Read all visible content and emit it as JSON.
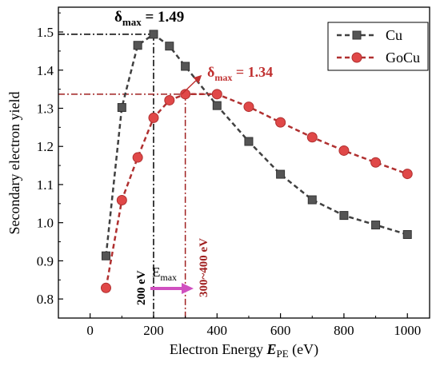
{
  "chart_data": {
    "type": "line",
    "xlabel_prefix": "Electron Energy ",
    "xlabel_var": "E",
    "xlabel_sub": "PE",
    "xlabel_unit": " (eV)",
    "ylabel": "Secondary electron yield",
    "xlim": [
      -100,
      1070
    ],
    "ylim": [
      0.75,
      1.565
    ],
    "x_ticks": [
      0,
      200,
      400,
      600,
      800,
      1000
    ],
    "y_ticks": [
      0.8,
      0.9,
      1.0,
      1.1,
      1.2,
      1.3,
      1.4,
      1.5
    ],
    "x_tick_labels": [
      "0",
      "200",
      "400",
      "600",
      "800",
      "1000"
    ],
    "y_tick_labels": [
      "0.8",
      "0.9",
      "1.0",
      "1.1",
      "1.2",
      "1.3",
      "1.4",
      "1.5"
    ],
    "legend_position": "top-right",
    "series": [
      {
        "name": "Cu",
        "color": "#404040",
        "marker": "square",
        "x": [
          50,
          100,
          150,
          200,
          250,
          300,
          400,
          500,
          600,
          700,
          800,
          900,
          1000
        ],
        "y": [
          0.913,
          1.302,
          1.465,
          1.494,
          1.463,
          1.41,
          1.307,
          1.213,
          1.127,
          1.06,
          1.019,
          0.994,
          0.969
        ]
      },
      {
        "name": "GoCu",
        "color": "#b03030",
        "marker": "circle",
        "x": [
          50,
          100,
          150,
          200,
          250,
          300,
          400,
          500,
          600,
          700,
          800,
          900,
          1000
        ],
        "y": [
          0.829,
          1.059,
          1.171,
          1.275,
          1.321,
          1.337,
          1.337,
          1.304,
          1.263,
          1.224,
          1.189,
          1.158,
          1.128
        ]
      }
    ],
    "annotations": {
      "cu_peak_prefix": "δ",
      "cu_peak_sub": "max",
      "cu_peak_value": " = 1.49",
      "gocu_peak_prefix": "δ",
      "gocu_peak_sub": "max",
      "gocu_peak_value": " = 1.34",
      "cu_energy_label": "200 eV",
      "gocu_energy_label": "300~400 eV",
      "emax_prefix": "E",
      "emax_sub": "max"
    }
  }
}
